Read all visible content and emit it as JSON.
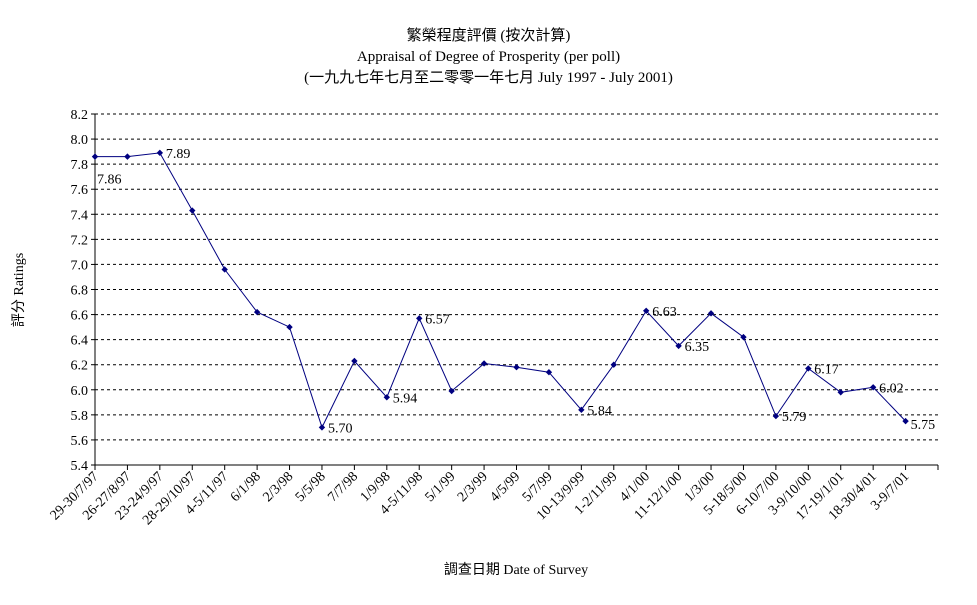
{
  "chart_data": {
    "type": "line",
    "title": "繁榮程度評價 (按次計算)",
    "subtitle": "Appraisal of Degree of Prosperity (per poll)",
    "subtitle2": "(一九九七年七月至二零零一年七月 July 1997 - July 2001)",
    "xlabel": "調查日期 Date of Survey",
    "ylabel": "評分 Ratings",
    "ylim": [
      5.4,
      8.2
    ],
    "ytick_step": 0.2,
    "grid": "horizontal-dashed",
    "line_color": "#000080",
    "categories": [
      "29-30/7/97",
      "26-27/8/97",
      "23-24/9/97",
      "28-29/10/97",
      "4-5/11/97",
      "6/1/98",
      "2/3/98",
      "5/5/98",
      "7/7/98",
      "1/9/98",
      "4-5/11/98",
      "5/1/99",
      "2/3/99",
      "4/5/99",
      "5/7/99",
      "10-13/9/99",
      "1-2/11/99",
      "4/1/00",
      "11-12/1/00",
      "1/3/00",
      "5-18/5/00",
      "6-10/7/00",
      "3-9/10/00",
      "17-19/1/01",
      "18-30/4/01",
      "3-9/7/01"
    ],
    "series": [
      {
        "values": [
          7.86,
          7.86,
          7.89,
          7.43,
          6.96,
          6.62,
          6.5,
          5.7,
          6.23,
          5.94,
          6.57,
          5.99,
          6.21,
          6.18,
          6.14,
          5.84,
          6.2,
          6.63,
          6.35,
          6.61,
          6.42,
          5.79,
          6.17,
          5.98,
          6.02,
          5.75
        ],
        "data_labels": [
          {
            "index": 0,
            "text": "7.86"
          },
          {
            "index": 2,
            "text": "7.89"
          },
          {
            "index": 7,
            "text": "5.70"
          },
          {
            "index": 9,
            "text": "5.94"
          },
          {
            "index": 10,
            "text": "6.57"
          },
          {
            "index": 15,
            "text": "5.84"
          },
          {
            "index": 17,
            "text": "6.63"
          },
          {
            "index": 18,
            "text": "6.35"
          },
          {
            "index": 21,
            "text": "5.79"
          },
          {
            "index": 22,
            "text": "6.17"
          },
          {
            "index": 24,
            "text": "6.02"
          },
          {
            "index": 25,
            "text": "5.75"
          }
        ]
      }
    ]
  }
}
